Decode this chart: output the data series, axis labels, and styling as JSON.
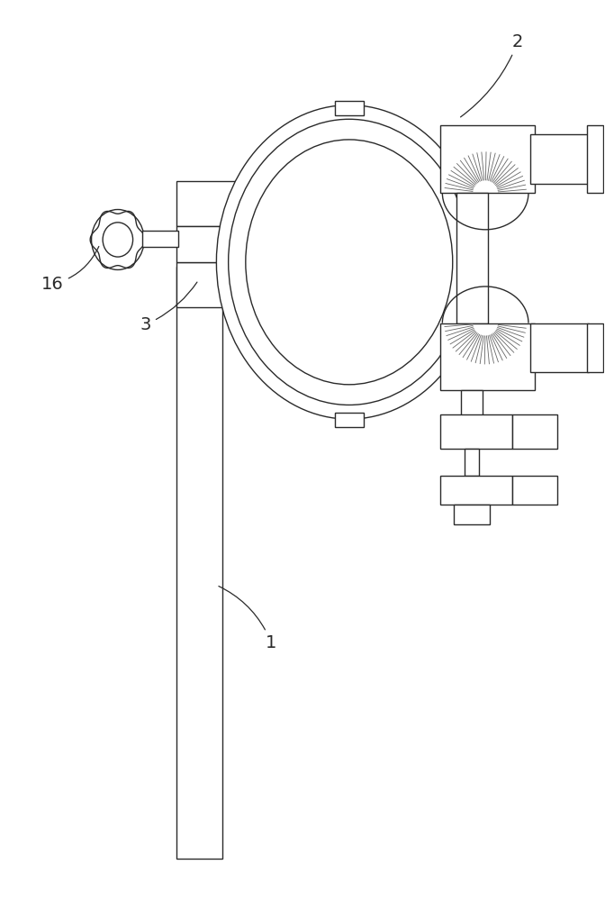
{
  "bg_color": "#ffffff",
  "line_color": "#2a2a2a",
  "figsize": [
    6.72,
    10.0
  ],
  "dpi": 100,
  "lw": 1.0
}
